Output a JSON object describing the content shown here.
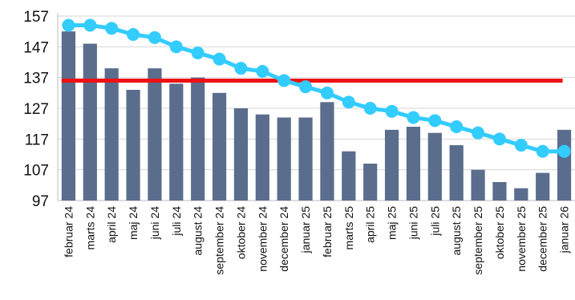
{
  "chart_data": {
    "type": "bar",
    "categories": [
      "februar 24",
      "marts 24",
      "april 24",
      "maj 24",
      "juni 24",
      "juli 24",
      "august 24",
      "september 24",
      "oktober 24",
      "november 24",
      "december 24",
      "januar 25",
      "februar 25",
      "marts 25",
      "april 25",
      "maj 25",
      "juni 25",
      "juli 25",
      "august 25",
      "september 25",
      "oktober 25",
      "november 25",
      "december 25",
      "januar 26"
    ],
    "series": [
      {
        "type": "bar",
        "color": "#5a6d8d",
        "values": [
          152,
          148,
          140,
          133,
          140,
          135,
          137,
          132,
          127,
          125,
          124,
          124,
          129,
          113,
          109,
          120,
          121,
          119,
          115,
          107,
          103,
          101,
          106,
          120
        ]
      },
      {
        "type": "line",
        "marker": "circle",
        "color": "#33ccff",
        "values": [
          154,
          154,
          153,
          151,
          150,
          147,
          145,
          143,
          140,
          139,
          136,
          134,
          132,
          129,
          127,
          126,
          124,
          123,
          121,
          119,
          117,
          115,
          113,
          113
        ]
      },
      {
        "type": "reference-line",
        "color": "#ee1111",
        "value": 136
      }
    ],
    "yticks": [
      "157",
      "147",
      "137",
      "127",
      "117",
      "107",
      "97"
    ],
    "ylim": [
      97,
      157
    ],
    "xlabel": "",
    "ylabel": "",
    "title": "",
    "grid": false,
    "legend": "none"
  }
}
